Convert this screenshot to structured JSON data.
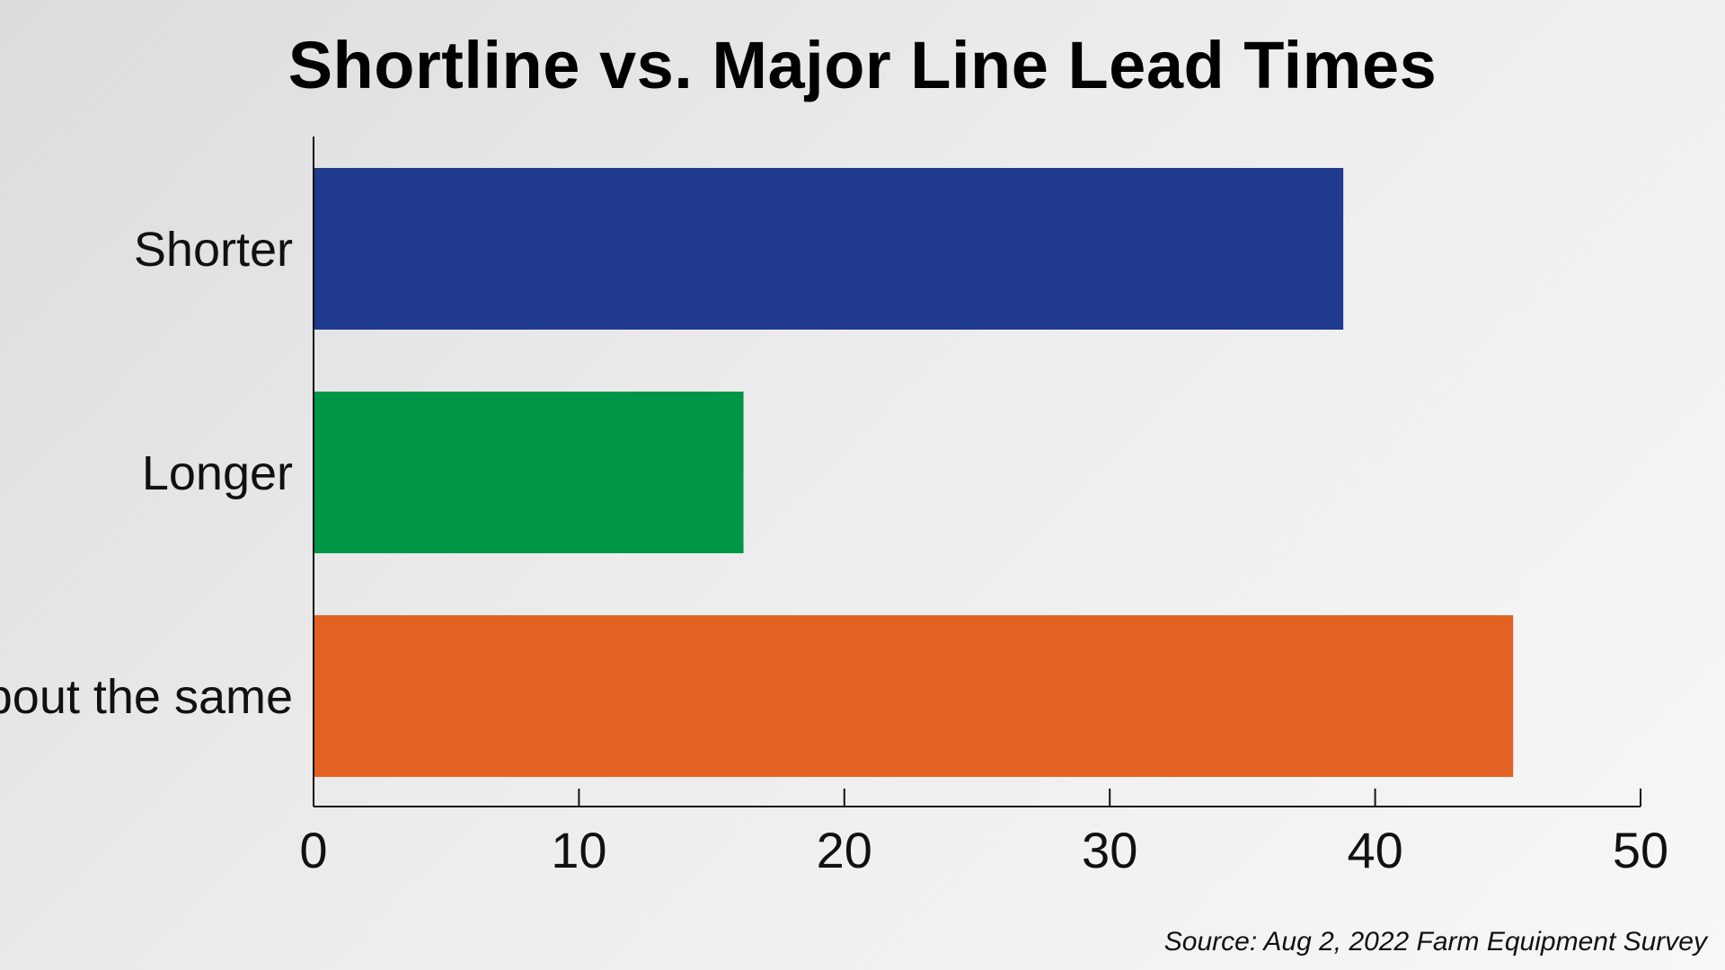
{
  "chart_data": {
    "type": "bar",
    "orientation": "horizontal",
    "title": "Shortline vs. Major Line Lead Times",
    "categories": [
      "Shorter",
      "Longer",
      "About the same"
    ],
    "values": [
      38.8,
      16.2,
      45.2
    ],
    "bar_colors": [
      "#203a8e",
      "#009647",
      "#e36123"
    ],
    "xlim": [
      0,
      50
    ],
    "xticks": [
      "0",
      "10",
      "20",
      "30",
      "40",
      "50"
    ],
    "xlabel": "",
    "ylabel": "",
    "grid": false,
    "legend": "none"
  },
  "source": "Source: Aug 2, 2022 Farm Equipment Survey"
}
